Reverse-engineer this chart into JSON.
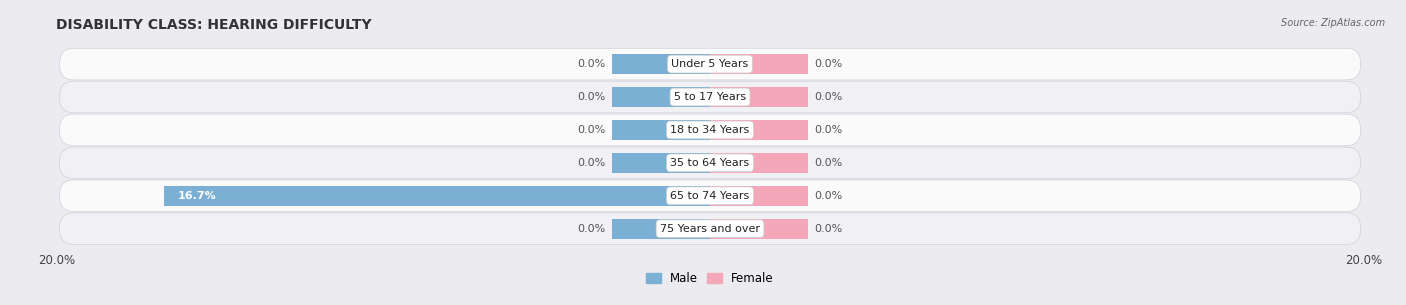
{
  "title": "DISABILITY CLASS: HEARING DIFFICULTY",
  "source_text": "Source: ZipAtlas.com",
  "categories": [
    "Under 5 Years",
    "5 to 17 Years",
    "18 to 34 Years",
    "35 to 64 Years",
    "65 to 74 Years",
    "75 Years and over"
  ],
  "male_values": [
    0.0,
    0.0,
    0.0,
    0.0,
    16.7,
    0.0
  ],
  "female_values": [
    0.0,
    0.0,
    0.0,
    0.0,
    0.0,
    0.0
  ],
  "male_color": "#7bafd4",
  "female_color": "#f4a7b9",
  "male_label": "Male",
  "female_label": "Female",
  "xlim": 20.0,
  "stub_size": 3.0,
  "bar_height": 0.6,
  "bg_color": "#ebebf0",
  "row_color_light": "#fafafa",
  "row_color_dark": "#f0f0f5",
  "title_fontsize": 10,
  "value_fontsize": 8,
  "tick_fontsize": 8.5,
  "category_fontsize": 8
}
